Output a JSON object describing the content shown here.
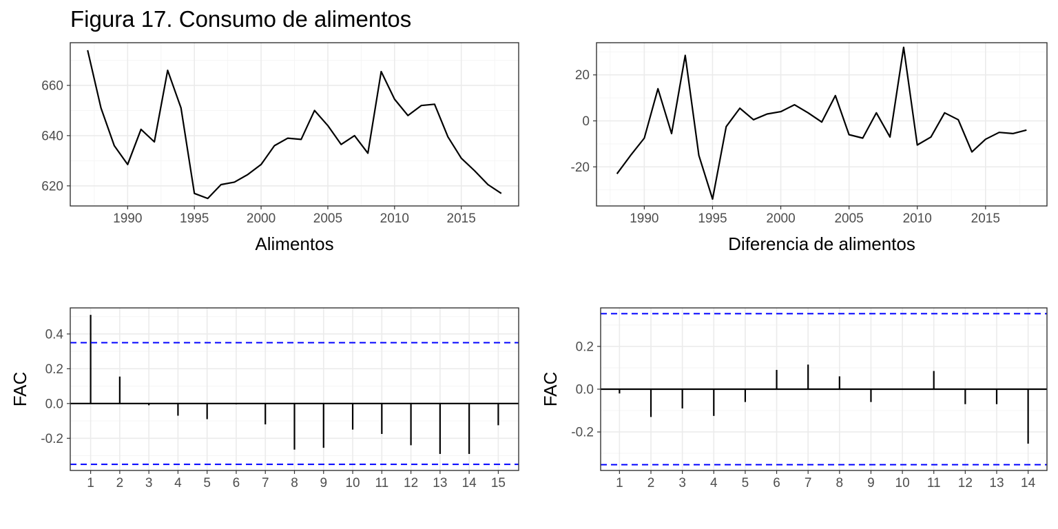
{
  "title": "Figura 17. Consumo de alimentos",
  "colors": {
    "line": "#000000",
    "ci": "#0000ff",
    "grid_major": "#ebebeb",
    "grid_minor": "#f5f5f5",
    "border": "#333333",
    "tick_text": "#4d4d4d"
  },
  "chart_data": [
    {
      "type": "line",
      "xlabel": "Alimentos",
      "ylabel": "",
      "xlim": [
        1985.7,
        2019.3
      ],
      "ylim": [
        612,
        677
      ],
      "xticks": [
        1990,
        1995,
        2000,
        2005,
        2010,
        2015
      ],
      "xtick_labels": [
        "1990",
        "1995",
        "2000",
        "2005",
        "2010",
        "2015"
      ],
      "yticks": [
        620,
        640,
        660
      ],
      "ytick_labels": [
        "620",
        "640",
        "660"
      ],
      "grid": true,
      "x": [
        1987,
        1988,
        1989,
        1990,
        1991,
        1992,
        1993,
        1994,
        1995,
        1996,
        1997,
        1998,
        1999,
        2000,
        2001,
        2002,
        2003,
        2004,
        2005,
        2006,
        2007,
        2008,
        2009,
        2010,
        2011,
        2012,
        2013,
        2014,
        2015,
        2016,
        2017,
        2018
      ],
      "y": [
        674,
        651,
        636,
        628.5,
        642.5,
        637.5,
        666,
        651,
        617,
        615,
        620.5,
        621.5,
        624.5,
        628.5,
        636,
        639,
        638.5,
        650,
        644,
        636.5,
        640,
        633,
        665.5,
        654.5,
        648,
        652,
        652.5,
        639.5,
        631,
        626,
        620.5,
        617
      ]
    },
    {
      "type": "line",
      "xlabel": "Diferencia de alimentos",
      "ylabel": "",
      "xlim": [
        1986.5,
        2019.5
      ],
      "ylim": [
        -37,
        34
      ],
      "xticks": [
        1990,
        1995,
        2000,
        2005,
        2010,
        2015
      ],
      "xtick_labels": [
        "1990",
        "1995",
        "2000",
        "2005",
        "2010",
        "2015"
      ],
      "yticks": [
        -20,
        0,
        20
      ],
      "ytick_labels": [
        "-20",
        "0",
        "20"
      ],
      "grid": true,
      "x": [
        1988,
        1989,
        1990,
        1991,
        1992,
        1993,
        1994,
        1995,
        1996,
        1997,
        1998,
        1999,
        2000,
        2001,
        2002,
        2003,
        2004,
        2005,
        2006,
        2007,
        2008,
        2009,
        2010,
        2011,
        2012,
        2013,
        2014,
        2015,
        2016,
        2017,
        2018
      ],
      "y": [
        -23,
        -15,
        -7.5,
        14,
        -5.5,
        28.5,
        -15,
        -34,
        -2.5,
        5.5,
        0.5,
        3,
        4,
        7,
        3.5,
        -0.5,
        11,
        -6,
        -7.5,
        3.5,
        -7,
        32,
        -10.5,
        -7,
        3.5,
        0.5,
        -13.5,
        -8,
        -5,
        -5.5,
        -4
      ]
    },
    {
      "type": "bar",
      "xlabel": "",
      "ylabel": "FAC",
      "xlim": [
        0.3,
        15.7
      ],
      "ylim": [
        -0.385,
        0.55
      ],
      "xticks": [
        1,
        2,
        3,
        4,
        5,
        6,
        7,
        8,
        9,
        10,
        11,
        12,
        13,
        14,
        15
      ],
      "xtick_labels": [
        "1",
        "2",
        "3",
        "4",
        "5",
        "6",
        "7",
        "8",
        "9",
        "10",
        "11",
        "12",
        "13",
        "14",
        "15"
      ],
      "yticks": [
        -0.2,
        0.0,
        0.2,
        0.4
      ],
      "ytick_labels": [
        "-0.2",
        "0.0",
        "0.2",
        "0.4"
      ],
      "ci": 0.35,
      "grid": true,
      "categories": [
        1,
        2,
        3,
        4,
        5,
        6,
        7,
        8,
        9,
        10,
        11,
        12,
        13,
        14,
        15
      ],
      "values": [
        0.51,
        0.155,
        -0.01,
        -0.07,
        -0.09,
        -0.005,
        -0.12,
        -0.265,
        -0.255,
        -0.15,
        -0.175,
        -0.24,
        -0.29,
        -0.29,
        -0.125
      ]
    },
    {
      "type": "bar",
      "xlabel": "",
      "ylabel": "FAC",
      "xlim": [
        0.4,
        14.6
      ],
      "ylim": [
        -0.38,
        0.38
      ],
      "xticks": [
        1,
        2,
        3,
        4,
        5,
        6,
        7,
        8,
        9,
        10,
        11,
        12,
        13,
        14
      ],
      "xtick_labels": [
        "1",
        "2",
        "3",
        "4",
        "5",
        "6",
        "7",
        "8",
        "9",
        "10",
        "11",
        "12",
        "13",
        "14"
      ],
      "yticks": [
        -0.2,
        0.0,
        0.2
      ],
      "ytick_labels": [
        "-0.2",
        "0.0",
        "0.2"
      ],
      "ci": 0.353,
      "grid": true,
      "categories": [
        1,
        2,
        3,
        4,
        5,
        6,
        7,
        8,
        9,
        10,
        11,
        12,
        13,
        14
      ],
      "values": [
        -0.02,
        -0.13,
        -0.09,
        -0.125,
        -0.06,
        0.09,
        0.115,
        0.06,
        -0.06,
        0.0,
        0.085,
        -0.07,
        -0.07,
        -0.255
      ]
    }
  ]
}
